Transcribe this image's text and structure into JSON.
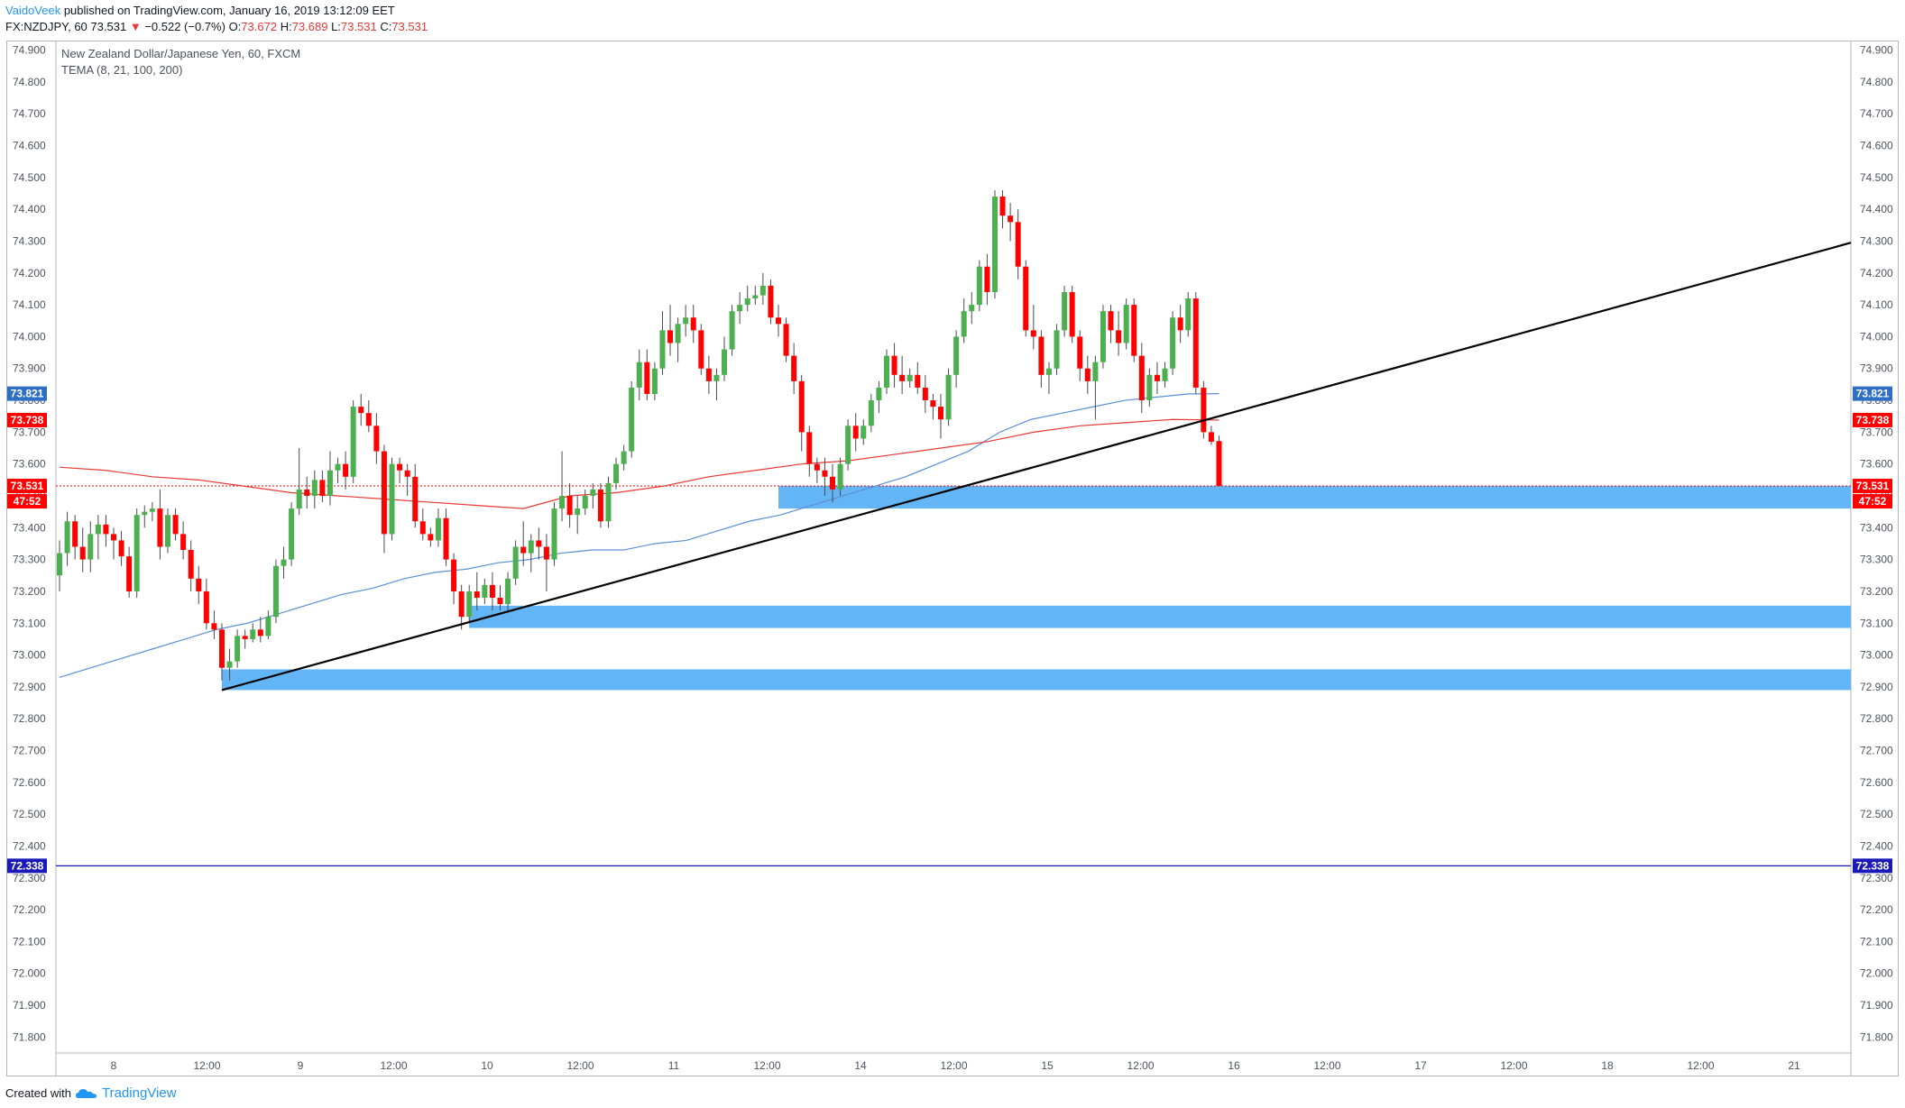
{
  "header": {
    "author": "VaidoVeek",
    "published": "published on TradingView.com, January 16, 2019 13:12:09 EET",
    "symbol": "FX:NZDJPY, 60",
    "last": "73.531",
    "arrow": "▼",
    "change": "−0.522 (−0.7%)",
    "o_label": "O:",
    "o_value": "73.672",
    "h_label": "H:",
    "h_value": "73.689",
    "l_label": "L:",
    "l_value": "73.531",
    "c_label": "C:",
    "c_value": "73.531"
  },
  "legend": {
    "title": "New Zealand Dollar/Japanese Yen, 60, FXCM",
    "indicator": "TEMA (8, 21, 100, 200)"
  },
  "footer": {
    "created_with": "Created with",
    "brand": "TradingView"
  },
  "colors": {
    "up": "#4caf50",
    "down": "#ff0000",
    "tema_blue": "#5b8fd6",
    "tema_red": "#e53935",
    "zone": "#64b5f6",
    "trendline": "#000000",
    "hline": "#1a1ab8"
  },
  "chart_data": {
    "type": "candlestick",
    "ylim": [
      71.75,
      74.93
    ],
    "y_ticks": [
      "71.800",
      "71.900",
      "72.000",
      "72.100",
      "72.200",
      "72.300",
      "72.400",
      "72.500",
      "72.600",
      "72.700",
      "72.800",
      "72.900",
      "73.000",
      "73.100",
      "73.200",
      "73.300",
      "73.400",
      "73.500",
      "73.600",
      "73.700",
      "73.800",
      "73.900",
      "74.000",
      "74.100",
      "74.200",
      "74.300",
      "74.400",
      "74.500",
      "74.600",
      "74.700",
      "74.800",
      "74.900"
    ],
    "x_ticks": [
      "8",
      "12:00",
      "9",
      "12:00",
      "10",
      "12:00",
      "11",
      "12:00",
      "14",
      "12:00",
      "15",
      "12:00",
      "16",
      "12:00",
      "17",
      "12:00",
      "18",
      "12:00",
      "21"
    ],
    "candles": [
      [
        73.25,
        73.36,
        73.2,
        73.32
      ],
      [
        73.32,
        73.45,
        73.28,
        73.42
      ],
      [
        73.42,
        73.44,
        73.3,
        73.34
      ],
      [
        73.34,
        73.4,
        73.26,
        73.3
      ],
      [
        73.3,
        73.42,
        73.26,
        73.38
      ],
      [
        73.38,
        73.44,
        73.3,
        73.41
      ],
      [
        73.41,
        73.44,
        73.34,
        73.38
      ],
      [
        73.38,
        73.4,
        73.3,
        73.36
      ],
      [
        73.36,
        73.39,
        73.28,
        73.31
      ],
      [
        73.31,
        73.34,
        73.18,
        73.2
      ],
      [
        73.2,
        73.46,
        73.18,
        73.44
      ],
      [
        73.44,
        73.47,
        73.4,
        73.45
      ],
      [
        73.45,
        73.48,
        73.42,
        73.46
      ],
      [
        73.46,
        73.52,
        73.3,
        73.34
      ],
      [
        73.34,
        73.46,
        73.32,
        73.44
      ],
      [
        73.44,
        73.46,
        73.36,
        73.38
      ],
      [
        73.38,
        73.42,
        73.3,
        73.33
      ],
      [
        73.33,
        73.36,
        73.2,
        73.24
      ],
      [
        73.24,
        73.28,
        73.16,
        73.2
      ],
      [
        73.2,
        73.24,
        73.08,
        73.1
      ],
      [
        73.1,
        73.14,
        73.05,
        73.08
      ],
      [
        73.08,
        73.1,
        72.92,
        72.96
      ],
      [
        72.96,
        73.02,
        72.92,
        72.98
      ],
      [
        72.98,
        73.08,
        72.96,
        73.06
      ],
      [
        73.06,
        73.08,
        73.02,
        73.05
      ],
      [
        73.05,
        73.1,
        73.04,
        73.08
      ],
      [
        73.08,
        73.12,
        73.04,
        73.06
      ],
      [
        73.06,
        73.14,
        73.05,
        73.12
      ],
      [
        73.12,
        73.3,
        73.1,
        73.28
      ],
      [
        73.28,
        73.34,
        73.24,
        73.3
      ],
      [
        73.3,
        73.48,
        73.28,
        73.46
      ],
      [
        73.46,
        73.65,
        73.44,
        73.52
      ],
      [
        73.52,
        73.56,
        73.46,
        73.5
      ],
      [
        73.5,
        73.58,
        73.46,
        73.55
      ],
      [
        73.55,
        73.58,
        73.48,
        73.5
      ],
      [
        73.5,
        73.64,
        73.47,
        73.58
      ],
      [
        73.58,
        73.62,
        73.54,
        73.6
      ],
      [
        73.6,
        73.64,
        73.52,
        73.56
      ],
      [
        73.56,
        73.8,
        73.54,
        73.78
      ],
      [
        73.78,
        73.82,
        73.72,
        73.76
      ],
      [
        73.76,
        73.8,
        73.7,
        73.72
      ],
      [
        73.72,
        73.76,
        73.6,
        73.64
      ],
      [
        73.64,
        73.66,
        73.32,
        73.38
      ],
      [
        73.38,
        73.62,
        73.36,
        73.6
      ],
      [
        73.6,
        73.62,
        73.54,
        73.58
      ],
      [
        73.58,
        73.6,
        73.5,
        73.56
      ],
      [
        73.56,
        73.6,
        73.4,
        73.42
      ],
      [
        73.42,
        73.46,
        73.36,
        73.38
      ],
      [
        73.38,
        73.4,
        73.34,
        73.36
      ],
      [
        73.36,
        73.46,
        73.34,
        73.43
      ],
      [
        73.43,
        73.46,
        73.28,
        73.3
      ],
      [
        73.3,
        73.32,
        73.16,
        73.2
      ],
      [
        73.2,
        73.22,
        73.08,
        73.12
      ],
      [
        73.12,
        73.22,
        73.1,
        73.2
      ],
      [
        73.2,
        73.26,
        73.14,
        73.18
      ],
      [
        73.18,
        73.24,
        73.16,
        73.22
      ],
      [
        73.22,
        73.26,
        73.14,
        73.18
      ],
      [
        73.18,
        73.22,
        73.14,
        73.16
      ],
      [
        73.16,
        73.26,
        73.14,
        73.24
      ],
      [
        73.24,
        73.36,
        73.22,
        73.34
      ],
      [
        73.34,
        73.42,
        73.28,
        73.32
      ],
      [
        73.32,
        73.38,
        73.26,
        73.36
      ],
      [
        73.36,
        73.4,
        73.3,
        73.34
      ],
      [
        73.34,
        73.38,
        73.2,
        73.3
      ],
      [
        73.3,
        73.48,
        73.28,
        73.46
      ],
      [
        73.46,
        73.64,
        73.42,
        73.5
      ],
      [
        73.5,
        73.54,
        73.4,
        73.44
      ],
      [
        73.44,
        73.5,
        73.38,
        73.46
      ],
      [
        73.46,
        73.52,
        73.44,
        73.5
      ],
      [
        73.5,
        73.54,
        73.46,
        73.52
      ],
      [
        73.52,
        73.54,
        73.4,
        73.42
      ],
      [
        73.42,
        73.56,
        73.4,
        73.54
      ],
      [
        73.54,
        73.62,
        73.52,
        73.6
      ],
      [
        73.6,
        73.66,
        73.58,
        73.64
      ],
      [
        73.64,
        73.86,
        73.62,
        73.84
      ],
      [
        73.84,
        73.96,
        73.8,
        73.92
      ],
      [
        73.92,
        73.96,
        73.8,
        73.82
      ],
      [
        73.82,
        73.92,
        73.8,
        73.9
      ],
      [
        73.9,
        74.08,
        73.88,
        74.02
      ],
      [
        74.02,
        74.1,
        73.94,
        73.98
      ],
      [
        73.98,
        74.06,
        73.92,
        74.04
      ],
      [
        74.04,
        74.1,
        74.0,
        74.06
      ],
      [
        74.06,
        74.1,
        73.98,
        74.02
      ],
      [
        74.02,
        74.04,
        73.88,
        73.9
      ],
      [
        73.9,
        73.94,
        73.82,
        73.86
      ],
      [
        73.86,
        73.9,
        73.8,
        73.88
      ],
      [
        73.88,
        74.0,
        73.86,
        73.96
      ],
      [
        73.96,
        74.1,
        73.94,
        74.08
      ],
      [
        74.08,
        74.14,
        74.04,
        74.1
      ],
      [
        74.1,
        74.16,
        74.08,
        74.12
      ],
      [
        74.12,
        74.16,
        74.1,
        74.13
      ],
      [
        74.13,
        74.2,
        74.1,
        74.16
      ],
      [
        74.16,
        74.18,
        74.04,
        74.06
      ],
      [
        74.06,
        74.1,
        74.0,
        74.04
      ],
      [
        74.04,
        74.06,
        73.92,
        73.94
      ],
      [
        73.94,
        73.98,
        73.82,
        73.86
      ],
      [
        73.86,
        73.88,
        73.64,
        73.7
      ],
      [
        73.7,
        73.72,
        73.56,
        73.6
      ],
      [
        73.6,
        73.62,
        73.54,
        73.58
      ],
      [
        73.58,
        73.62,
        73.5,
        73.56
      ],
      [
        73.56,
        73.6,
        73.48,
        73.52
      ],
      [
        73.52,
        73.62,
        73.5,
        73.6
      ],
      [
        73.6,
        73.74,
        73.58,
        73.72
      ],
      [
        73.72,
        73.76,
        73.64,
        73.68
      ],
      [
        73.68,
        73.74,
        73.66,
        73.72
      ],
      [
        73.72,
        73.82,
        73.7,
        73.8
      ],
      [
        73.8,
        73.86,
        73.76,
        73.84
      ],
      [
        73.84,
        73.96,
        73.82,
        73.94
      ],
      [
        73.94,
        73.98,
        73.84,
        73.88
      ],
      [
        73.88,
        73.94,
        73.82,
        73.86
      ],
      [
        73.86,
        73.9,
        73.84,
        73.88
      ],
      [
        73.88,
        73.92,
        73.82,
        73.84
      ],
      [
        73.84,
        73.88,
        73.76,
        73.8
      ],
      [
        73.8,
        73.82,
        73.74,
        73.78
      ],
      [
        73.78,
        73.82,
        73.68,
        73.74
      ],
      [
        73.74,
        73.9,
        73.72,
        73.88
      ],
      [
        73.88,
        74.02,
        73.84,
        74.0
      ],
      [
        74.0,
        74.12,
        73.98,
        74.08
      ],
      [
        74.08,
        74.14,
        74.04,
        74.1
      ],
      [
        74.1,
        74.24,
        74.08,
        74.22
      ],
      [
        74.22,
        74.26,
        74.1,
        74.14
      ],
      [
        74.14,
        74.46,
        74.12,
        74.44
      ],
      [
        74.44,
        74.46,
        74.34,
        74.38
      ],
      [
        74.38,
        74.42,
        74.3,
        74.36
      ],
      [
        74.36,
        74.4,
        74.18,
        74.22
      ],
      [
        74.22,
        74.24,
        74.0,
        74.02
      ],
      [
        74.02,
        74.1,
        73.96,
        74.0
      ],
      [
        74.0,
        74.02,
        73.84,
        73.88
      ],
      [
        73.88,
        73.92,
        73.82,
        73.9
      ],
      [
        73.9,
        74.04,
        73.88,
        74.02
      ],
      [
        74.02,
        74.16,
        74.0,
        74.14
      ],
      [
        74.14,
        74.16,
        73.98,
        74.0
      ],
      [
        74.0,
        74.02,
        73.86,
        73.9
      ],
      [
        73.9,
        73.94,
        73.82,
        73.86
      ],
      [
        73.86,
        73.94,
        73.74,
        73.92
      ],
      [
        73.92,
        74.1,
        73.9,
        74.08
      ],
      [
        74.08,
        74.1,
        73.98,
        74.02
      ],
      [
        74.02,
        74.08,
        73.94,
        73.98
      ],
      [
        73.98,
        74.12,
        73.96,
        74.1
      ],
      [
        74.1,
        74.12,
        73.92,
        73.94
      ],
      [
        73.94,
        73.98,
        73.76,
        73.8
      ],
      [
        73.8,
        73.9,
        73.78,
        73.88
      ],
      [
        73.88,
        73.92,
        73.82,
        73.86
      ],
      [
        73.86,
        73.92,
        73.84,
        73.9
      ],
      [
        73.9,
        74.08,
        73.88,
        74.06
      ],
      [
        74.06,
        74.1,
        73.98,
        74.02
      ],
      [
        74.02,
        74.14,
        74.0,
        74.12
      ],
      [
        74.12,
        74.14,
        73.82,
        73.84
      ],
      [
        73.84,
        73.86,
        73.68,
        73.7
      ],
      [
        73.7,
        73.72,
        73.66,
        73.67
      ],
      [
        73.672,
        73.689,
        73.531,
        73.531
      ]
    ],
    "tema_slow": [
      72.93,
      72.96,
      72.99,
      73.02,
      73.05,
      73.08,
      73.1,
      73.13,
      73.16,
      73.19,
      73.21,
      73.24,
      73.26,
      73.27,
      73.29,
      73.3,
      73.32,
      73.33,
      73.33,
      73.35,
      73.36,
      73.39,
      73.42,
      73.44,
      73.47,
      73.5,
      73.53,
      73.56,
      73.6,
      73.64,
      73.7,
      73.74,
      73.76,
      73.78,
      73.8,
      73.81,
      73.82,
      73.821
    ],
    "tema_fast": [
      73.59,
      73.58,
      73.56,
      73.55,
      73.53,
      73.51,
      73.5,
      73.49,
      73.48,
      73.47,
      73.46,
      73.5,
      73.51,
      73.53,
      73.56,
      73.58,
      73.6,
      73.61,
      73.63,
      73.65,
      73.67,
      73.7,
      73.72,
      73.73,
      73.74,
      73.738
    ],
    "zones": [
      {
        "top": 73.531,
        "bottom": 73.46,
        "from_index": 93
      },
      {
        "top": 73.155,
        "bottom": 73.085,
        "from_index": 53
      },
      {
        "top": 72.955,
        "bottom": 72.89,
        "from_index": 21
      }
    ],
    "trendline": {
      "from_index": 21,
      "from_value": 72.89,
      "to_value": 74.295
    },
    "horizontal_line": 72.338,
    "current_price": 73.531,
    "badges": [
      {
        "value": "73.821",
        "at": 73.821,
        "color": "#2e6fc4"
      },
      {
        "value": "73.738",
        "at": 73.738,
        "color": "#ff0000"
      },
      {
        "value": "73.531",
        "at": 73.531,
        "color": "#ff0000"
      },
      {
        "value": "72.338",
        "at": 72.338,
        "color": "#1a1ab8"
      }
    ],
    "countdown": "47:52"
  }
}
